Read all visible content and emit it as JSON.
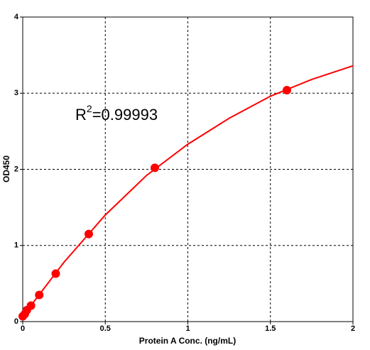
{
  "chart_data": {
    "type": "scatter",
    "xlabel": "Protein A Conc. (ng/mL)",
    "ylabel": "OD450",
    "annotation": [
      "R",
      "2",
      "=0.99993"
    ],
    "xlim": [
      0,
      2
    ],
    "xticks": [
      0,
      0.5,
      1,
      1.5,
      2
    ],
    "ylim": [
      0,
      4
    ],
    "yticks": [
      0,
      1,
      2,
      3,
      4
    ],
    "grid": true,
    "series": [
      {
        "style": "line",
        "color": "#ff0000",
        "x": [
          0,
          0.25,
          0.5,
          0.75,
          1,
          1.25,
          1.5,
          1.75,
          2
        ],
        "values": [
          0.07,
          0.78,
          1.4,
          1.92,
          2.33,
          2.67,
          2.96,
          3.18,
          3.36
        ]
      },
      {
        "style": "markers",
        "color": "#ff0000",
        "x": [
          0,
          0.0125,
          0.025,
          0.05,
          0.1,
          0.2,
          0.4,
          0.8,
          1.6
        ],
        "values": [
          0.07,
          0.1,
          0.15,
          0.21,
          0.35,
          0.63,
          1.15,
          2.02,
          3.04
        ]
      }
    ]
  }
}
